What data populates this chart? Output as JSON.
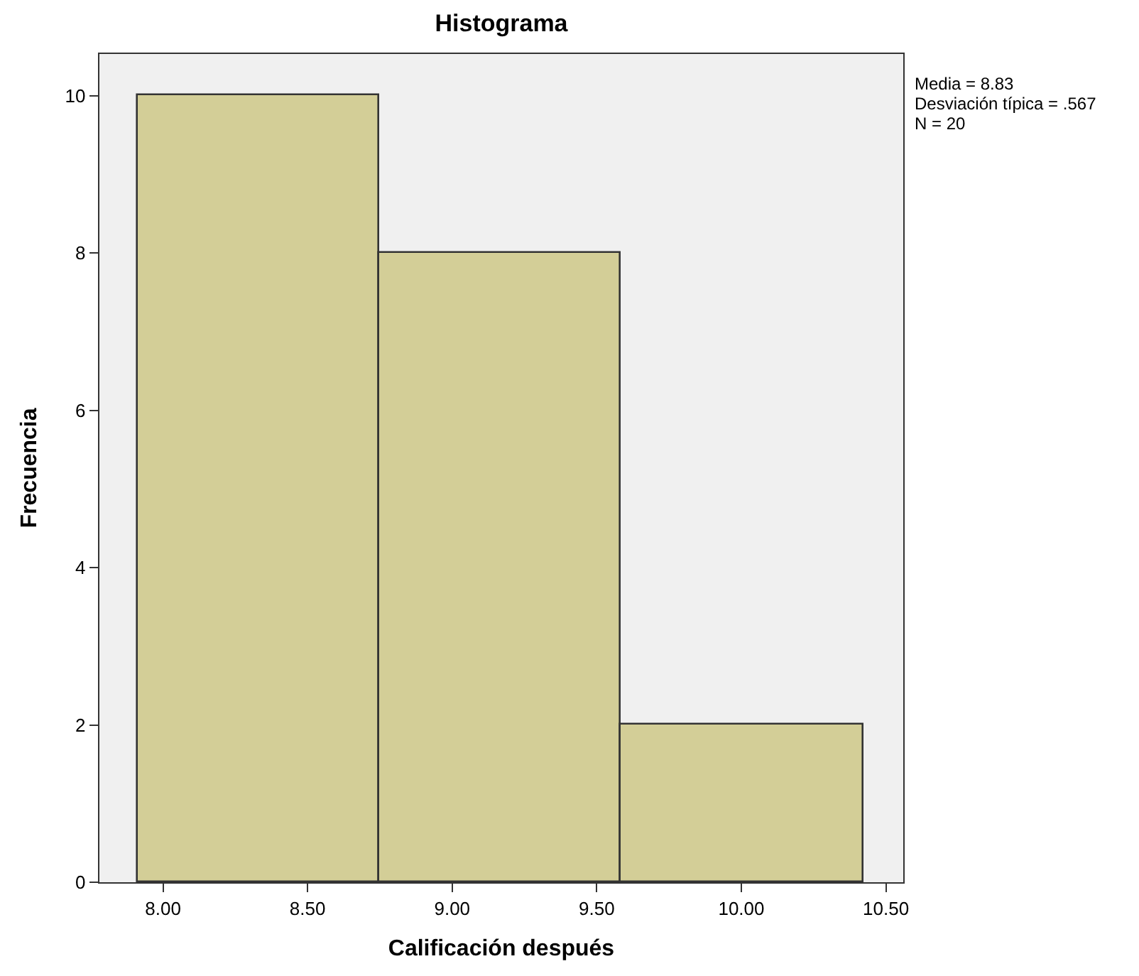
{
  "chart_data": {
    "type": "histogram",
    "title": "Histograma",
    "xlabel": "Calificación después",
    "ylabel": "Frecuencia",
    "bins": [
      7.915,
      8.75,
      9.585,
      10.42
    ],
    "values": [
      10,
      8,
      2
    ],
    "color": "#d3ce97",
    "xlim": [
      7.78,
      10.56
    ],
    "xticks": [
      {
        "value": 8,
        "label": "8.00"
      },
      {
        "value": 8.5,
        "label": "8.50"
      },
      {
        "value": 9,
        "label": "9.00"
      },
      {
        "value": 9.5,
        "label": "9.50"
      },
      {
        "value": 10,
        "label": "10.00"
      },
      {
        "value": 10.5,
        "label": "10.50"
      }
    ],
    "ylim": [
      0,
      10.53
    ],
    "yticks": [
      0,
      2,
      4,
      6,
      8,
      10
    ],
    "grid": false,
    "annotations": [
      "Media = 8.83",
      "Desviación típica = .567",
      "N = 20"
    ]
  }
}
